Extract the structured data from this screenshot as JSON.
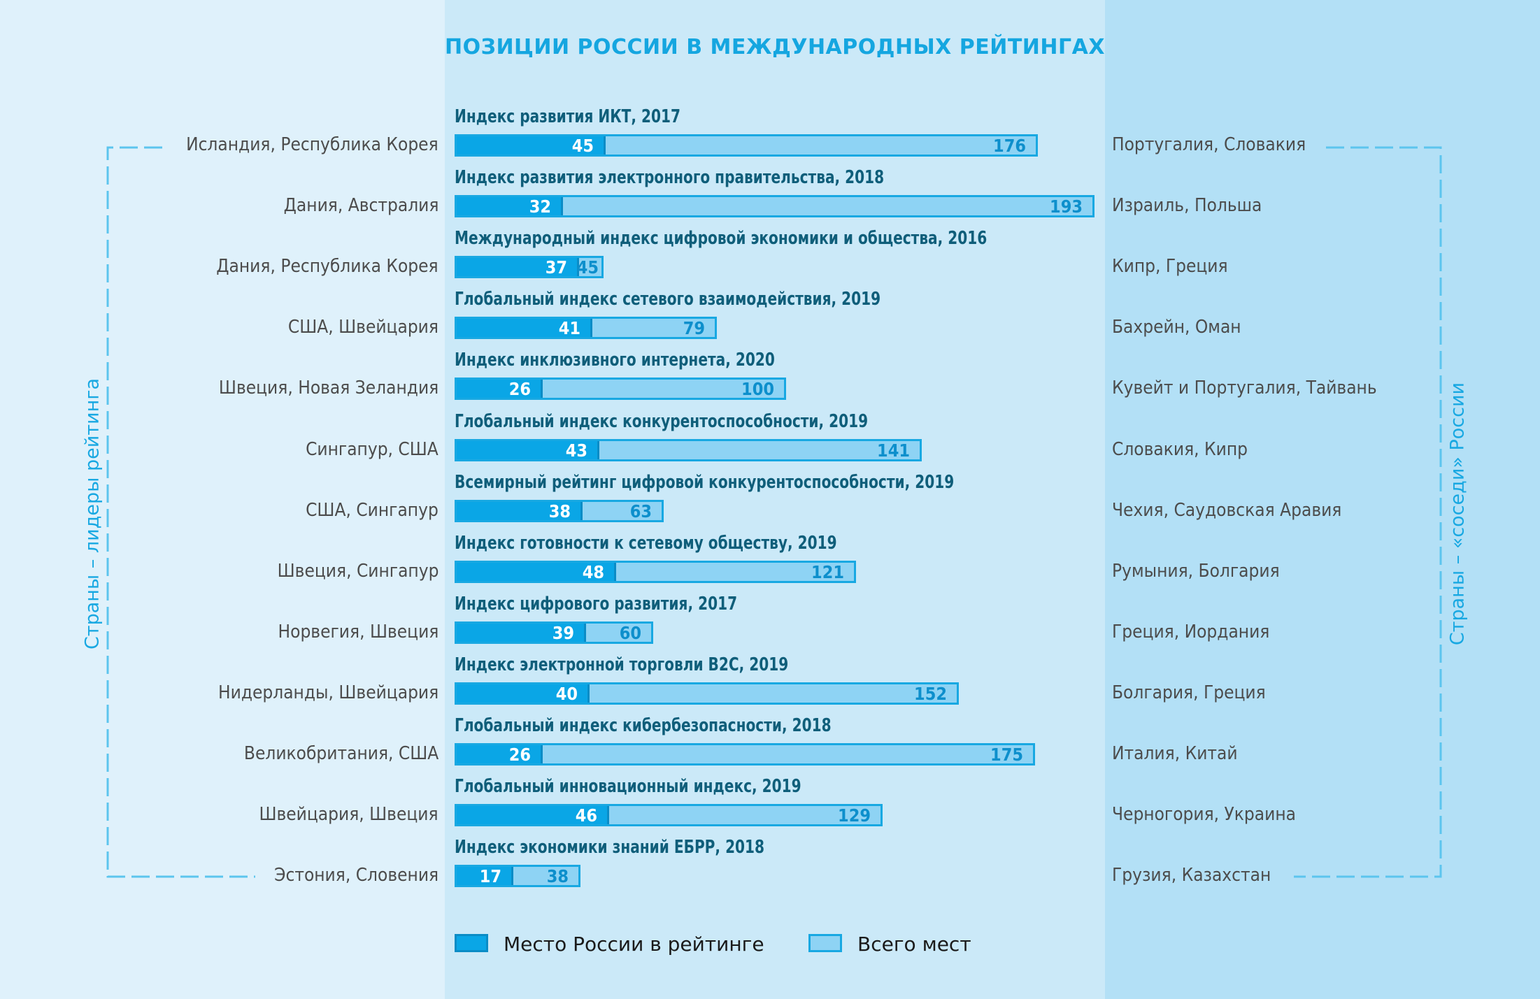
{
  "title": "ПОЗИЦИИ РОССИИ В МЕЖДУНАРОДНЫХ РЕЙТИНГАХ",
  "side_labels": {
    "left": "Страны – лидеры рейтинга",
    "right": "Страны – «соседи» России"
  },
  "legend": {
    "place": "Место России в рейтинге",
    "total": "Всего мест"
  },
  "colors": {
    "place_fill": "#0aa6e6",
    "total_fill": "#8ed3f4",
    "border": "#18a8e2",
    "title": "#15a6e0"
  },
  "chart_data": {
    "type": "bar",
    "orientation": "horizontal",
    "series": [
      {
        "name": "Место России в рейтинге",
        "values": [
          45,
          32,
          37,
          41,
          26,
          43,
          38,
          48,
          39,
          40,
          26,
          46,
          17
        ]
      },
      {
        "name": "Всего мест",
        "values": [
          176,
          193,
          45,
          79,
          100,
          141,
          63,
          121,
          60,
          152,
          175,
          129,
          38
        ]
      }
    ],
    "rows": [
      {
        "index": "Индекс развития ИКТ, 2017",
        "leaders": "Исландия, Республика Корея",
        "neighbors": "Португалия, Словакия",
        "place": 45,
        "total": 176
      },
      {
        "index": "Индекс развития электронного правительства, 2018",
        "leaders": "Дания, Австралия",
        "neighbors": "Израиль, Польша",
        "place": 32,
        "total": 193
      },
      {
        "index": "Международный индекс цифровой экономики и общества, 2016",
        "leaders": "Дания, Республика Корея",
        "neighbors": "Кипр, Греция",
        "place": 37,
        "total": 45
      },
      {
        "index": "Глобальный индекс сетевого взаимодействия, 2019",
        "leaders": "США, Швейцария",
        "neighbors": "Бахрейн, Оман",
        "place": 41,
        "total": 79
      },
      {
        "index": "Индекс инклюзивного интернета, 2020",
        "leaders": "Швеция, Новая Зеландия",
        "neighbors": "Кувейт и Португалия, Тайвань",
        "place": 26,
        "total": 100
      },
      {
        "index": "Глобальный индекс конкурентоспособности, 2019",
        "leaders": "Сингапур, США",
        "neighbors": "Словакия, Кипр",
        "place": 43,
        "total": 141
      },
      {
        "index": "Всемирный рейтинг цифровой конкурентоспособности, 2019",
        "leaders": "США, Сингапур",
        "neighbors": "Чехия, Саудовская Аравия",
        "place": 38,
        "total": 63
      },
      {
        "index": "Индекс готовности к сетевому обществу, 2019",
        "leaders": "Швеция, Сингапур",
        "neighbors": "Румыния, Болгария",
        "place": 48,
        "total": 121
      },
      {
        "index": "Индекс цифрового развития, 2017",
        "leaders": "Норвегия, Швеция",
        "neighbors": "Греция, Иордания",
        "place": 39,
        "total": 60
      },
      {
        "index": "Индекс электронной торговли B2C, 2019",
        "leaders": "Нидерланды, Швейцария",
        "neighbors": "Болгария, Греция",
        "place": 40,
        "total": 152
      },
      {
        "index": "Глобальный индекс кибербезопасности, 2018",
        "leaders": "Великобритания, США",
        "neighbors": "Италия, Китай",
        "place": 26,
        "total": 175
      },
      {
        "index": "Глобальный инновационный индекс, 2019",
        "leaders": "Швейцария, Швеция",
        "neighbors": "Черногория, Украина",
        "place": 46,
        "total": 129
      },
      {
        "index": "Индекс экономики знаний ЕБРР, 2018",
        "leaders": "Эстония, Словения",
        "neighbors": "Грузия, Казахстан",
        "place": 17,
        "total": 38
      }
    ]
  }
}
